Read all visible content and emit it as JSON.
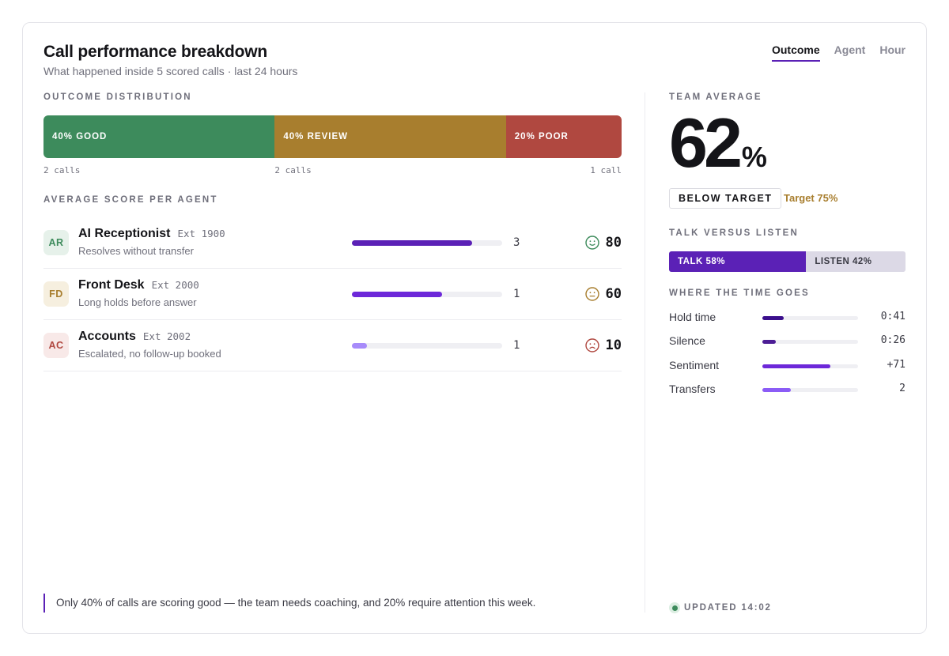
{
  "header": {
    "title": "Call performance breakdown",
    "subtitle": "What happened inside 5 scored calls · last 24 hours"
  },
  "tabs": [
    {
      "label": "Outcome",
      "active": true
    },
    {
      "label": "Agent",
      "active": false
    },
    {
      "label": "Hour",
      "active": false
    }
  ],
  "outcome": {
    "label": "OUTCOME DISTRIBUTION",
    "segments": [
      {
        "label": "40% GOOD",
        "percent": 40,
        "count": "2 calls",
        "color": "#3d8b5c"
      },
      {
        "label": "40% REVIEW",
        "percent": 40,
        "count": "2 calls",
        "color": "#a87e2e"
      },
      {
        "label": "20% POOR",
        "percent": 20,
        "count": "1 call",
        "color": "#b04840"
      }
    ]
  },
  "agents": {
    "label": "AVERAGE SCORE PER AGENT",
    "rows": [
      {
        "initials": "AR",
        "name": "AI Receptionist",
        "ext": "Ext 1900",
        "desc": "Resolves without transfer",
        "calls": "3",
        "score": "80",
        "score_fraction": 0.8,
        "mood": "happy",
        "avatar_bg": "#e6f1ea",
        "avatar_fg": "#3d8b5c",
        "bar_color": "#5b21b6",
        "face_color": "#3d8b5c"
      },
      {
        "initials": "FD",
        "name": "Front Desk",
        "ext": "Ext 2000",
        "desc": "Long holds before answer",
        "calls": "1",
        "score": "60",
        "score_fraction": 0.6,
        "mood": "neutral",
        "avatar_bg": "#f6efdf",
        "avatar_fg": "#a87e2e",
        "bar_color": "#6d28d9",
        "face_color": "#a87e2e"
      },
      {
        "initials": "AC",
        "name": "Accounts",
        "ext": "Ext 2002",
        "desc": "Escalated, no follow-up booked",
        "calls": "1",
        "score": "10",
        "score_fraction": 0.1,
        "mood": "sad",
        "avatar_bg": "#f8e9e8",
        "avatar_fg": "#b04840",
        "bar_color": "#a78bfa",
        "face_color": "#b04840"
      }
    ]
  },
  "note": "Only 40% of calls are scoring good — the team needs coaching, and 20% require attention this week.",
  "team": {
    "label": "TEAM AVERAGE",
    "value": "62",
    "unit": "%",
    "badge": "BELOW TARGET",
    "target": "Target 75%"
  },
  "talk": {
    "label": "TALK VERSUS LISTEN",
    "talk_label": "TALK 58%",
    "talk_percent": 58,
    "listen_label": "LISTEN 42%",
    "listen_percent": 42
  },
  "time": {
    "label": "WHERE THE TIME GOES",
    "rows": [
      {
        "name": "Hold time",
        "value": "0:41",
        "fraction": 0.22,
        "color": "#3b0f8c"
      },
      {
        "name": "Silence",
        "value": "0:26",
        "fraction": 0.14,
        "color": "#4c1d95"
      },
      {
        "name": "Sentiment",
        "value": "+71",
        "fraction": 0.71,
        "color": "#6d28d9"
      },
      {
        "name": "Transfers",
        "value": "2",
        "fraction": 0.3,
        "color": "#8b5cf6"
      }
    ]
  },
  "updated": "UPDATED 14:02"
}
